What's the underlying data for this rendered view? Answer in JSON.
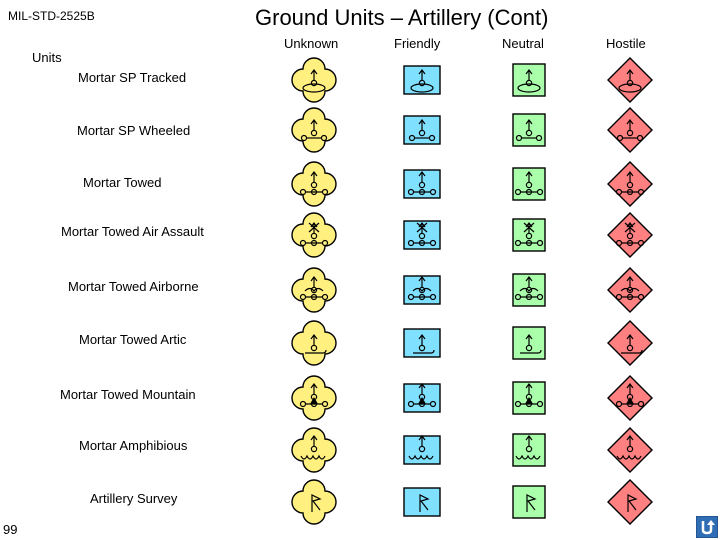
{
  "header": {
    "standard": "MIL-STD-2525B",
    "title": "Ground Units –  Artillery (Cont)"
  },
  "columns": [
    "Unknown",
    "Friendly",
    "Neutral",
    "Hostile"
  ],
  "section_label": "Units",
  "rows": [
    "Mortar SP Tracked",
    "Mortar SP Wheeled",
    "Mortar Towed",
    "Mortar Towed Air Assault",
    "Mortar Towed Airborne",
    "Mortar Towed Artic",
    "Mortar Towed Mountain",
    "Mortar Amphibious",
    "Artillery Survey"
  ],
  "page_number": "99",
  "colors": {
    "unknown": "#FFF080",
    "friendly": "#80E0FF",
    "neutral": "#AAFFAA",
    "hostile": "#FF8080"
  },
  "icons": {
    "nav": "return-icon"
  }
}
